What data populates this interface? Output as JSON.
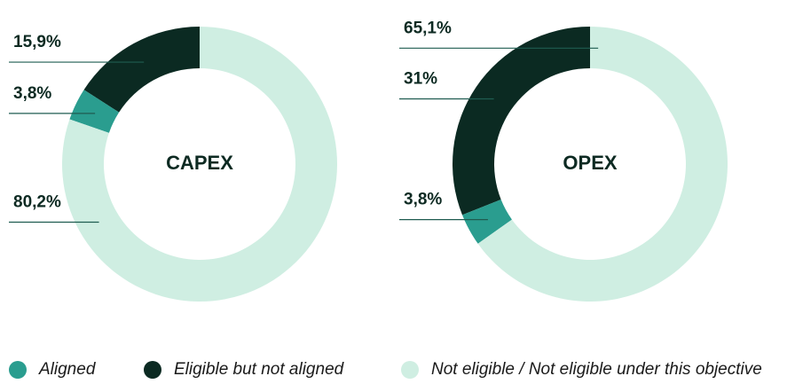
{
  "chart_data": [
    {
      "type": "pie",
      "title": "CAPEX",
      "categories": [
        "Aligned",
        "Eligible but not aligned",
        "Not eligible / Not eligible under this objective"
      ],
      "values": [
        3.8,
        15.9,
        80.2
      ],
      "value_labels": [
        "3,8%",
        "15,9%",
        "80,2%"
      ],
      "colors": [
        "#2a9d8f",
        "#0b2a22",
        "#cfeee2"
      ]
    },
    {
      "type": "pie",
      "title": "OPEX",
      "categories": [
        "Aligned",
        "Eligible but not aligned",
        "Not eligible / Not eligible under this objective"
      ],
      "values": [
        3.8,
        31,
        65.1
      ],
      "value_labels": [
        "3,8%",
        "31%",
        "65,1%"
      ],
      "colors": [
        "#2a9d8f",
        "#0b2a22",
        "#cfeee2"
      ]
    }
  ]
}
